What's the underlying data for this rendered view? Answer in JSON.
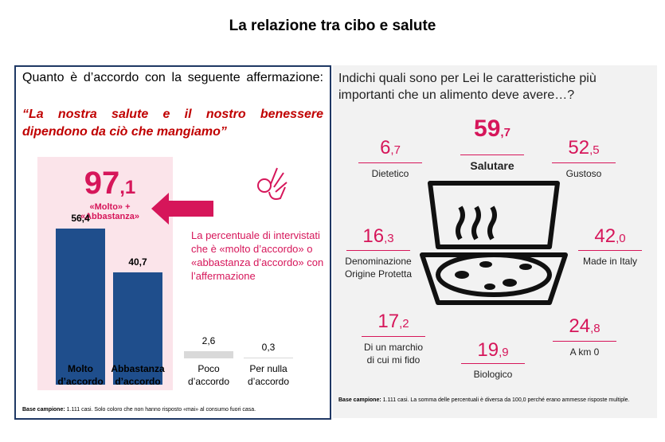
{
  "title": "La relazione tra cibo e salute",
  "left": {
    "question": "Quanto è d’accordo con la seguente affermazione:",
    "quote": "“La nostra salute e il nostro benessere dipendono da ciò che mangiamo”",
    "highlight": "97,1",
    "highlight_label": "«Molto» +\n«Abbastanza»",
    "description": "La percentuale di intervistati che è «molto d’accordo» o «abbastanza d’accordo» con l’affermazione",
    "note_label": "Base campione:",
    "note": "1.111 casi. Solo coloro che non hanno risposto «mai» al consumo fuori casa."
  },
  "chart_data": {
    "type": "bar",
    "categories": [
      "Molto\nd’accordo",
      "Abbastanza\nd’accordo",
      "Poco\nd’accordo",
      "Per nulla\nd’accordo"
    ],
    "values": [
      56.4,
      40.7,
      2.6,
      0.3
    ],
    "value_labels": [
      "56,4",
      "40,7",
      "2,6",
      "0,3"
    ],
    "colors": [
      "#1f4e8c",
      "#1f4e8c",
      "#d9d9d9",
      "#d9d9d9"
    ]
  },
  "right": {
    "question": "Indichi quali sono per Lei le caratteristiche più importanti che un alimento deve avere…?",
    "items": [
      {
        "value": "59,7",
        "label": "Salutare"
      },
      {
        "value": "6,7",
        "label": "Dietetico"
      },
      {
        "value": "52,5",
        "label": "Gustoso"
      },
      {
        "value": "16,3",
        "label": "Denominazione\nOrigine Protetta"
      },
      {
        "value": "42,0",
        "label": "Made in Italy"
      },
      {
        "value": "17,2",
        "label": "Di un marchio\ndi cui mi fido"
      },
      {
        "value": "19,9",
        "label": "Biologico"
      },
      {
        "value": "24,8",
        "label": "A km 0"
      }
    ],
    "note_label": "Base campione:",
    "note": "1.111 casi. La somma delle percentuali è diversa da 100,0 perché erano ammesse risposte multiple."
  }
}
